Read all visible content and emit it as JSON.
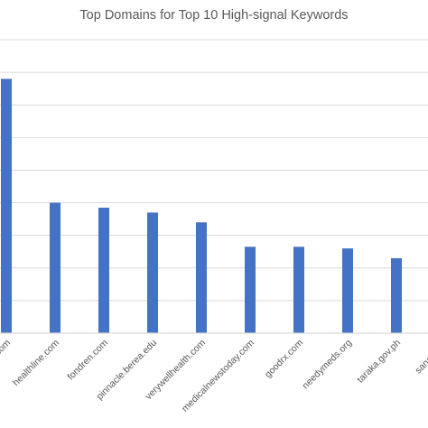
{
  "chart_data": {
    "type": "bar",
    "title": "Top Domains for Top 10 High-signal Keywords",
    "xlabel": "",
    "ylabel": "",
    "categories": [
      ".com",
      "healthline.com",
      "fondren.com",
      "pinnacle.berea.edu",
      "verywellhealth.com",
      "medicalnewstoday.com",
      "goodrx.com",
      "needymeds.org",
      "taraka.gov.ph",
      "sanangelo"
    ],
    "values": [
      7.8,
      4.0,
      3.85,
      3.7,
      3.4,
      2.65,
      2.65,
      2.6,
      2.3,
      0
    ],
    "ylim": [
      0,
      9
    ],
    "grid": true,
    "colors": {
      "bar": "#4472c4",
      "grid": "#d9d9d9",
      "text": "#595959"
    }
  }
}
